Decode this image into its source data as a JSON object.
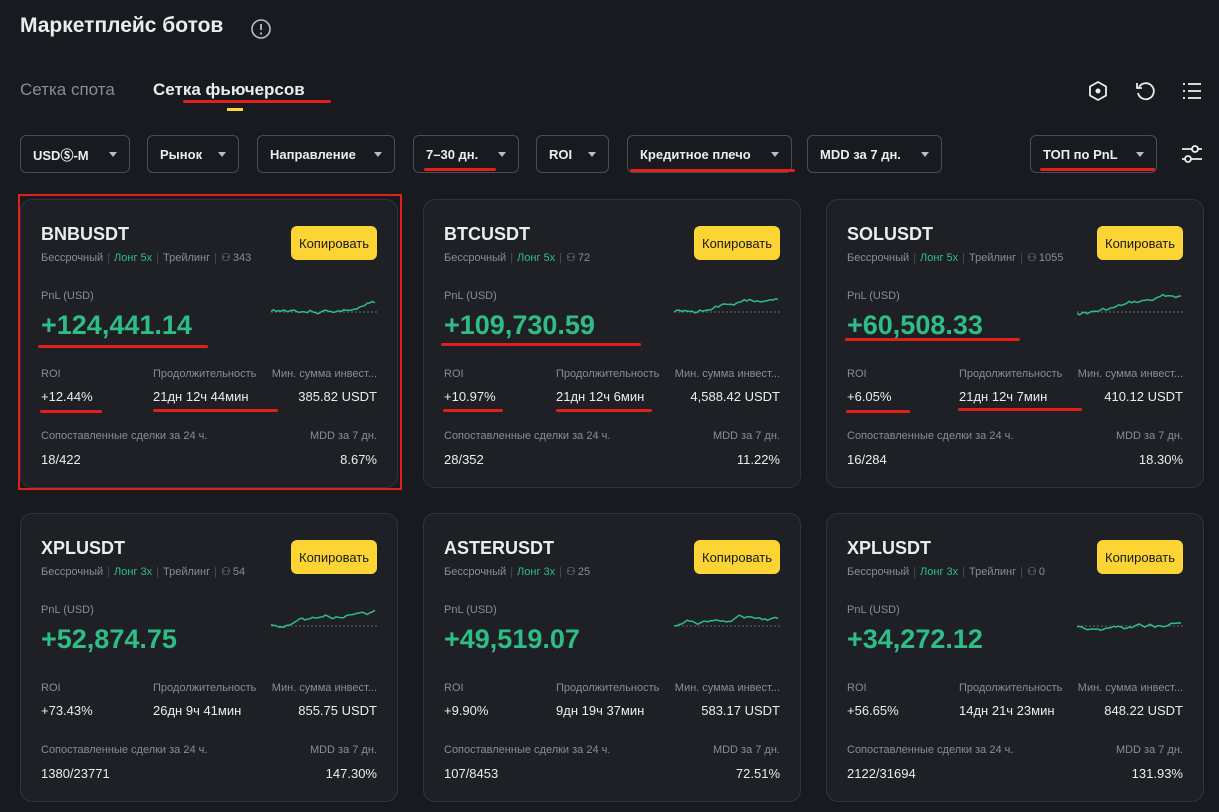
{
  "header": {
    "title": "Маркетплейс ботов"
  },
  "tabs": [
    "Сетка спота",
    "Сетка фьючерсов"
  ],
  "filters": [
    "USDⓈ-M",
    "Рынок",
    "Направление",
    "7–30 дн.",
    "ROI",
    "Кредитное плечо",
    "MDD за 7 дн.",
    "ТОП по PnL"
  ],
  "cards": [
    {
      "symbol": "BNBUSDT",
      "type": "Бессрочный",
      "direction": "Лонг 5x",
      "mode": "Трейлинг",
      "users": "343",
      "copy": "Копировать",
      "pnl_label": "PnL (USD)",
      "pnl": "+124,441.14",
      "roi_label": "ROI",
      "roi": "+12.44%",
      "duration_label": "Продолжительность",
      "duration": "21дн 12ч 44мин",
      "min_label": "Мин. сумма инвест...",
      "min": "385.82 USDT",
      "trades_label": "Сопоставленные сделки за 24 ч.",
      "trades": "18/422",
      "mdd_label": "MDD за 7 дн.",
      "mdd": "8.67%"
    },
    {
      "symbol": "BTCUSDT",
      "type": "Бессрочный",
      "direction": "Лонг 5x",
      "users": "72",
      "copy": "Копировать",
      "pnl_label": "PnL (USD)",
      "pnl": "+109,730.59",
      "roi_label": "ROI",
      "roi": "+10.97%",
      "duration_label": "Продолжительность",
      "duration": "21дн 12ч 6мин",
      "min_label": "Мин. сумма инвест...",
      "min": "4,588.42 USDT",
      "trades_label": "Сопоставленные сделки за 24 ч.",
      "trades": "28/352",
      "mdd_label": "MDD за 7 дн.",
      "mdd": "11.22%"
    },
    {
      "symbol": "SOLUSDT",
      "type": "Бессрочный",
      "direction": "Лонг 5x",
      "mode": "Трейлинг",
      "users": "1055",
      "copy": "Копировать",
      "pnl_label": "PnL (USD)",
      "pnl": "+60,508.33",
      "roi_label": "ROI",
      "roi": "+6.05%",
      "duration_label": "Продолжительность",
      "duration": "21дн 12ч 7мин",
      "min_label": "Мин. сумма инвест...",
      "min": "410.12 USDT",
      "trades_label": "Сопоставленные сделки за 24 ч.",
      "trades": "16/284",
      "mdd_label": "MDD за 7 дн.",
      "mdd": "18.30%"
    },
    {
      "symbol": "XPLUSDT",
      "type": "Бессрочный",
      "direction": "Лонг 3x",
      "mode": "Трейлинг",
      "users": "54",
      "copy": "Копировать",
      "pnl_label": "PnL (USD)",
      "pnl": "+52,874.75",
      "roi_label": "ROI",
      "roi": "+73.43%",
      "duration_label": "Продолжительность",
      "duration": "26дн 9ч 41мин",
      "min_label": "Мин. сумма инвест...",
      "min": "855.75 USDT",
      "trades_label": "Сопоставленные сделки за 24 ч.",
      "trades": "1380/23771",
      "mdd_label": "MDD за 7 дн.",
      "mdd": "147.30%"
    },
    {
      "symbol": "ASTERUSDT",
      "type": "Бессрочный",
      "direction": "Лонг 3x",
      "users": "25",
      "copy": "Копировать",
      "pnl_label": "PnL (USD)",
      "pnl": "+49,519.07",
      "roi_label": "ROI",
      "roi": "+9.90%",
      "duration_label": "Продолжительность",
      "duration": "9дн 19ч 37мин",
      "min_label": "Мин. сумма инвест...",
      "min": "583.17 USDT",
      "trades_label": "Сопоставленные сделки за 24 ч.",
      "trades": "107/8453",
      "mdd_label": "MDD за 7 дн.",
      "mdd": "72.51%"
    },
    {
      "symbol": "XPLUSDT",
      "type": "Бессрочный",
      "direction": "Лонг 3x",
      "mode": "Трейлинг",
      "users": "0",
      "copy": "Копировать",
      "pnl_label": "PnL (USD)",
      "pnl": "+34,272.12",
      "roi_label": "ROI",
      "roi": "+56.65%",
      "duration_label": "Продолжительность",
      "duration": "14дн 21ч 23мин",
      "min_label": "Мин. сумма инвест...",
      "min": "848.22 USDT",
      "trades_label": "Сопоставленные сделки за 24 ч.",
      "trades": "2122/31694",
      "mdd_label": "MDD за 7 дн.",
      "mdd": "131.93%"
    }
  ]
}
